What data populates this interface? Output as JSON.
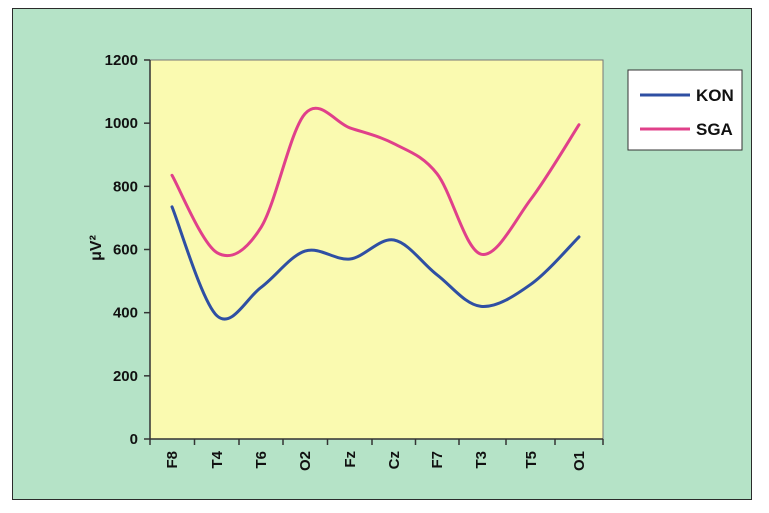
{
  "chart_data": {
    "type": "line",
    "title": "",
    "xlabel": "",
    "ylabel": "μV²",
    "categories": [
      "F8",
      "T4",
      "T6",
      "O2",
      "Fz",
      "Cz",
      "F7",
      "T3",
      "T5",
      "O1"
    ],
    "ylim": [
      0,
      1200
    ],
    "yticks": [
      0,
      200,
      400,
      600,
      800,
      1000,
      1200
    ],
    "grid": false,
    "legend_position": "top-right",
    "smooth": true,
    "series": [
      {
        "name": "KON",
        "color": "#2f4fa3",
        "values": [
          735,
          390,
          480,
          595,
          570,
          630,
          520,
          420,
          490,
          640
        ]
      },
      {
        "name": "SGA",
        "color": "#e0408a",
        "values": [
          835,
          590,
          670,
          1030,
          985,
          935,
          840,
          585,
          760,
          995
        ]
      }
    ]
  },
  "colors": {
    "frame_background": "#b5e3c7",
    "plot_background": "#fafab0",
    "axis": "#333333"
  }
}
